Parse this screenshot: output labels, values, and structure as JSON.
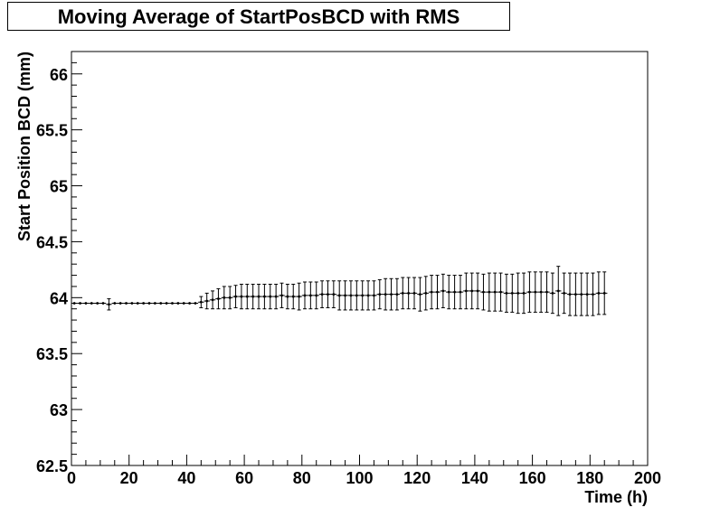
{
  "chart_data": {
    "type": "scatter",
    "title": "Moving Average of StartPosBCD with RMS",
    "xlabel": "Time (h)",
    "ylabel": "Start Position BCD (mm)",
    "xlim": [
      0,
      200
    ],
    "ylim": [
      62.5,
      66.2
    ],
    "x_ticks": [
      "0",
      "20",
      "40",
      "60",
      "80",
      "100",
      "120",
      "140",
      "160",
      "180",
      "200"
    ],
    "y_ticks": [
      "62.5",
      "63",
      "63.5",
      "64",
      "64.5",
      "65",
      "65.5",
      "66"
    ],
    "grid": false,
    "series": [
      {
        "x": [
          1,
          3,
          5,
          7,
          9,
          11,
          13,
          15,
          17,
          19,
          21,
          23,
          25,
          27,
          29,
          31,
          33,
          35,
          37,
          39,
          41,
          43,
          45,
          47,
          49,
          51,
          53,
          55,
          57,
          59,
          61,
          63,
          65,
          67,
          69,
          71,
          73,
          75,
          77,
          79,
          81,
          83,
          85,
          87,
          89,
          91,
          93,
          95,
          97,
          99,
          101,
          103,
          105,
          107,
          109,
          111,
          113,
          115,
          117,
          119,
          121,
          123,
          125,
          127,
          129,
          131,
          133,
          135,
          137,
          139,
          141,
          143,
          145,
          147,
          149,
          151,
          153,
          155,
          157,
          159,
          161,
          163,
          165,
          167,
          169,
          171,
          173,
          175,
          177,
          179,
          181,
          183,
          185
        ],
        "y": [
          63.95,
          63.95,
          63.95,
          63.95,
          63.95,
          63.95,
          63.94,
          63.95,
          63.95,
          63.95,
          63.95,
          63.95,
          63.95,
          63.95,
          63.95,
          63.95,
          63.95,
          63.95,
          63.95,
          63.95,
          63.95,
          63.95,
          63.96,
          63.97,
          63.98,
          63.99,
          64.0,
          64.0,
          64.01,
          64.01,
          64.01,
          64.01,
          64.01,
          64.01,
          64.01,
          64.01,
          64.02,
          64.01,
          64.01,
          64.01,
          64.02,
          64.02,
          64.02,
          64.03,
          64.03,
          64.03,
          64.02,
          64.02,
          64.02,
          64.02,
          64.02,
          64.02,
          64.02,
          64.03,
          64.03,
          64.03,
          64.03,
          64.04,
          64.04,
          64.04,
          64.03,
          64.04,
          64.05,
          64.05,
          64.06,
          64.05,
          64.05,
          64.05,
          64.06,
          64.06,
          64.06,
          64.05,
          64.05,
          64.05,
          64.05,
          64.04,
          64.04,
          64.04,
          64.04,
          64.05,
          64.05,
          64.05,
          64.05,
          64.04,
          64.06,
          64.04,
          64.03,
          64.03,
          64.03,
          64.03,
          64.03,
          64.04,
          64.04
        ],
        "err": [
          0.0,
          0.0,
          0.0,
          0.0,
          0.0,
          0.0,
          0.05,
          0.0,
          0.0,
          0.0,
          0.0,
          0.0,
          0.0,
          0.0,
          0.0,
          0.0,
          0.0,
          0.0,
          0.0,
          0.0,
          0.0,
          0.0,
          0.05,
          0.07,
          0.08,
          0.09,
          0.1,
          0.1,
          0.1,
          0.11,
          0.11,
          0.11,
          0.11,
          0.11,
          0.11,
          0.11,
          0.11,
          0.11,
          0.11,
          0.12,
          0.12,
          0.12,
          0.12,
          0.12,
          0.12,
          0.12,
          0.13,
          0.13,
          0.13,
          0.13,
          0.13,
          0.13,
          0.13,
          0.13,
          0.14,
          0.14,
          0.14,
          0.14,
          0.14,
          0.14,
          0.15,
          0.15,
          0.15,
          0.15,
          0.15,
          0.15,
          0.15,
          0.15,
          0.16,
          0.16,
          0.16,
          0.16,
          0.17,
          0.17,
          0.17,
          0.17,
          0.17,
          0.18,
          0.18,
          0.18,
          0.18,
          0.18,
          0.18,
          0.18,
          0.22,
          0.18,
          0.19,
          0.19,
          0.19,
          0.19,
          0.19,
          0.19,
          0.19
        ]
      }
    ]
  }
}
